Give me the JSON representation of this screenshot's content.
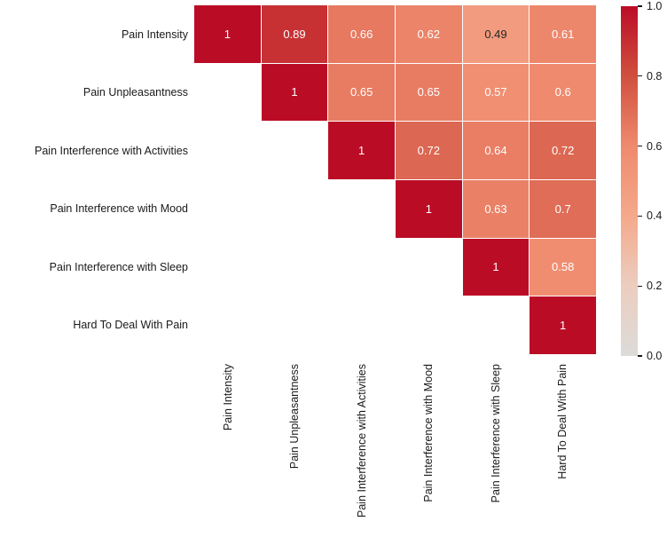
{
  "chart_data": {
    "type": "heatmap",
    "title": "",
    "xlabel": "",
    "ylabel": "",
    "categories": [
      "Pain Intensity",
      "Pain Unpleasantness",
      "Pain Interference with Activities",
      "Pain Interference with Mood",
      "Pain Interference with Sleep",
      "Hard To Deal With Pain"
    ],
    "matrix": [
      [
        1,
        0.89,
        0.66,
        0.62,
        0.49,
        0.61
      ],
      [
        null,
        1,
        0.65,
        0.65,
        0.57,
        0.6
      ],
      [
        null,
        null,
        1,
        0.72,
        0.64,
        0.72
      ],
      [
        null,
        null,
        null,
        1,
        0.63,
        0.7
      ],
      [
        null,
        null,
        null,
        null,
        1,
        0.58
      ],
      [
        null,
        null,
        null,
        null,
        null,
        1
      ]
    ],
    "mask": "lower-triangle",
    "annotations": true,
    "grid": false,
    "legend_position": "right-colorbar",
    "colorbar": {
      "min": 0.0,
      "max": 1.0,
      "ticks": [
        {
          "label": "1.0",
          "value": 1.0
        },
        {
          "label": "0.8",
          "value": 0.8
        },
        {
          "label": "0.6",
          "value": 0.6
        },
        {
          "label": "0.4",
          "value": 0.4
        },
        {
          "label": "0.2",
          "value": 0.2
        },
        {
          "label": "0.0",
          "value": 0.0
        }
      ]
    },
    "colormap": {
      "name": "coolwarm-upper-half",
      "stops": [
        {
          "v": 0.0,
          "color": "#dcdbd9"
        },
        {
          "v": 0.2,
          "color": "#eccdbf"
        },
        {
          "v": 0.4,
          "color": "#f4a98b"
        },
        {
          "v": 0.6,
          "color": "#ef8a6e"
        },
        {
          "v": 0.8,
          "color": "#d0503f"
        },
        {
          "v": 1.0,
          "color": "#bb0c26"
        }
      ]
    },
    "annotation_colors": {
      "light_text": "#ffffff",
      "dark_text": "#262626",
      "dark_text_threshold": 0.55
    },
    "background_color": "#ffffff",
    "axis_text_color": "#1a1a1a"
  }
}
